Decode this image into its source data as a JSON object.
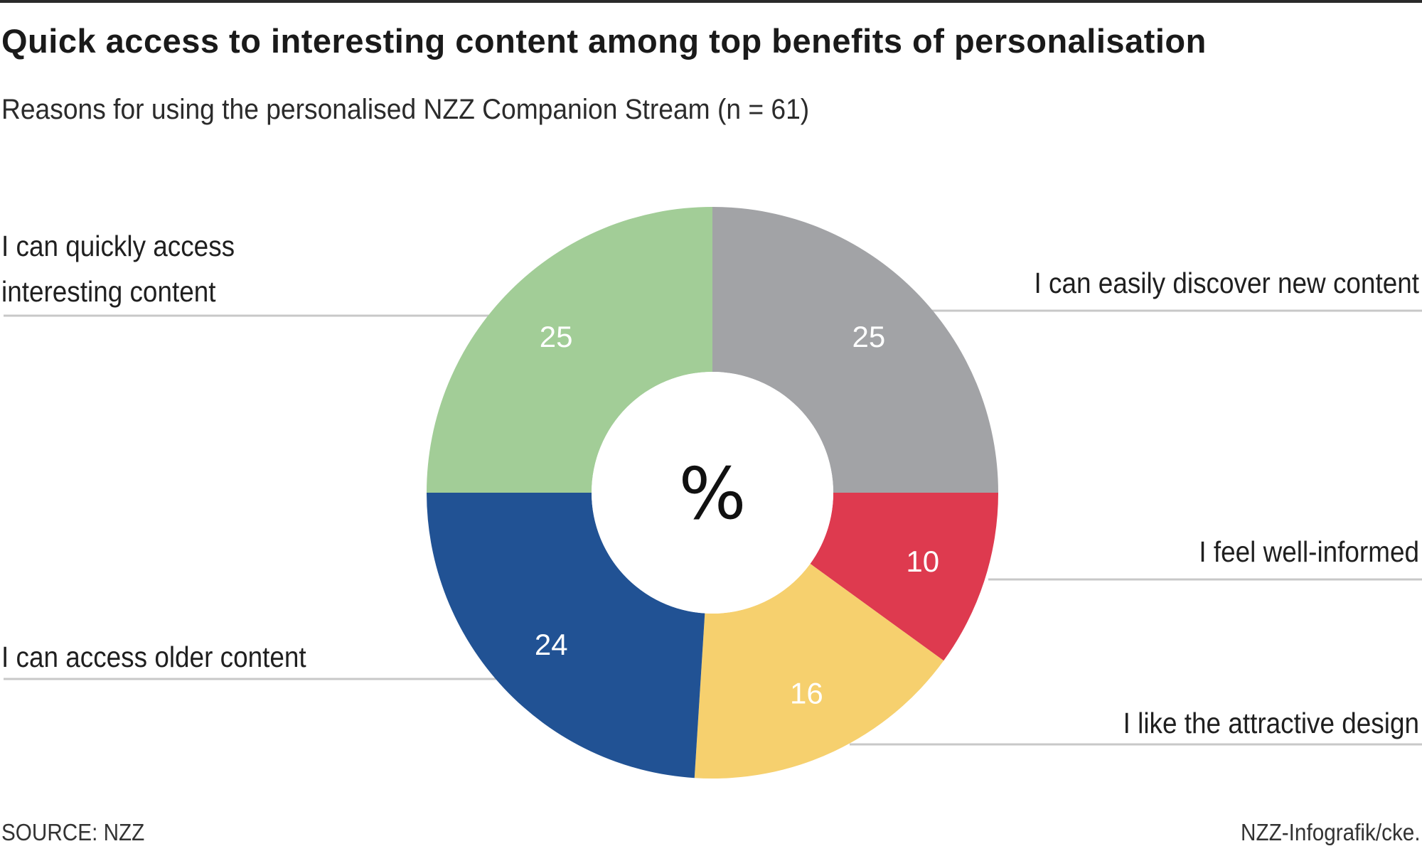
{
  "title": "Quick access to interesting content among top benefits of personalisation",
  "subtitle": "Reasons for using the personalised NZZ Companion Stream (n = 61)",
  "center_label": "%",
  "footer": {
    "source": "SOURCE: NZZ",
    "credit": "NZZ-Infografik/cke."
  },
  "chart_data": {
    "type": "pie",
    "variant": "donut",
    "unit": "%",
    "slices": [
      {
        "label": "I can easily discover new content",
        "value": 25,
        "color": "#a2a3a6"
      },
      {
        "label": "I feel well-informed",
        "value": 10,
        "color": "#de3a4f"
      },
      {
        "label": "I like the attractive design",
        "value": 16,
        "color": "#f6d06e"
      },
      {
        "label": "I can access older content",
        "value": 24,
        "color": "#215294"
      },
      {
        "label": "I can quickly access interesting content",
        "value": 25,
        "color": "#a2cd97"
      }
    ],
    "label_lines": [
      [
        "I can easily discover new content"
      ],
      [
        "I feel well-informed"
      ],
      [
        "I like the attractive design"
      ],
      [
        "I can access older content"
      ],
      [
        "I can quickly access",
        "interesting content"
      ]
    ]
  }
}
